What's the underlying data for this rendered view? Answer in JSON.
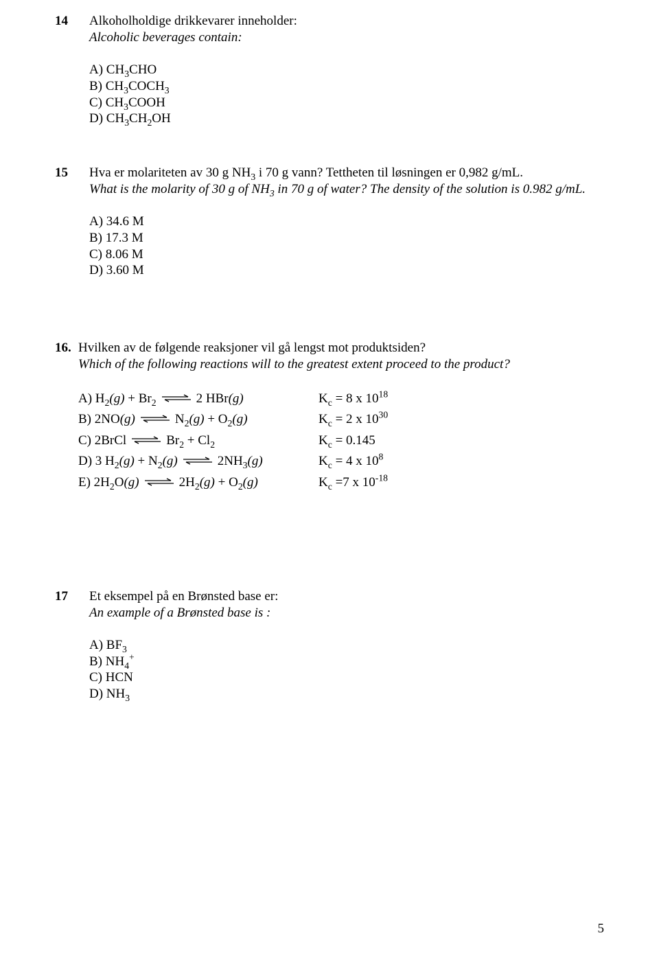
{
  "page_number": "5",
  "colors": {
    "text": "#000000",
    "background": "#ffffff"
  },
  "q14": {
    "number": "14",
    "title_html": "Alkoholholdige drikkevarer inneholder:",
    "subtitle_html": "Alcoholic beverages contain:",
    "options": [
      "A)  CH<sub>3</sub>CHO",
      "B)  CH<sub>3</sub>COCH<sub>3</sub>",
      "C)  CH<sub>3</sub>COOH",
      "D)  CH<sub>3</sub>CH<sub>2</sub>OH"
    ]
  },
  "q15": {
    "number": "15",
    "title_html": "Hva er molariteten av 30 g NH<sub>3</sub> i 70 g vann? Tettheten til løsningen er 0,982 g/mL.",
    "subtitle_html": "What is the molarity of 30 g of NH<sub>3</sub> in 70 g of water? The density of the solution is 0.982 g/mL.",
    "options": [
      "A)  34.6 M",
      "B)  17.3 M",
      "C)  8.06 M",
      "D)  3.60 M"
    ]
  },
  "q16": {
    "number": "16.",
    "title_html": "Hvilken av de følgende reaksjoner vil gå lengst mot produktsiden?",
    "subtitle_html": "Which of the following reactions will to the greatest extent proceed to the product?",
    "reactions": [
      {
        "left_pre": "A) H<sub>2</sub><i>(g)</i> + Br<sub>2</sub>",
        "left_post": "2 HBr<i>(g)</i>",
        "k": "K<sub>c</sub> = 8 x 10<sup>18</sup>"
      },
      {
        "left_pre": "B) 2NO<i>(g)</i>",
        "left_post": "N<sub>2</sub><i>(g)</i> + O<sub>2</sub><i>(g)</i>",
        "k": "K<sub>c</sub> = 2 x 10<sup>30</sup>"
      },
      {
        "left_pre": "C) 2BrCl",
        "left_post": "Br<sub>2</sub> + Cl<sub>2</sub>",
        "k": "K<sub>c</sub> = 0.145"
      },
      {
        "left_pre": "D) 3 H<sub>2</sub><i>(g)</i> + N<sub>2</sub><i>(g)</i>",
        "left_post": "2NH<sub>3</sub><i>(g)</i>",
        "k": "K<sub>c</sub> = 4 x 10<sup>8</sup>"
      },
      {
        "left_pre": "E) 2H<sub>2</sub>O<i>(g)</i>",
        "left_post": "2H<sub>2</sub><i>(g)</i> + O<sub>2</sub><i>(g)</i>",
        "k": "K<sub>c</sub> =7 x 10<sup>-18</sup>"
      }
    ]
  },
  "q17": {
    "number": "17",
    "title_html": "Et eksempel på en Brønsted base er:",
    "subtitle_html": "An example of a Brønsted base is :",
    "options": [
      "A)  BF<sub>3</sub>",
      "B)  NH<sub>4</sub><sup>+</sup>",
      "C)  HCN",
      "D)  NH<sub>3</sub>"
    ]
  }
}
